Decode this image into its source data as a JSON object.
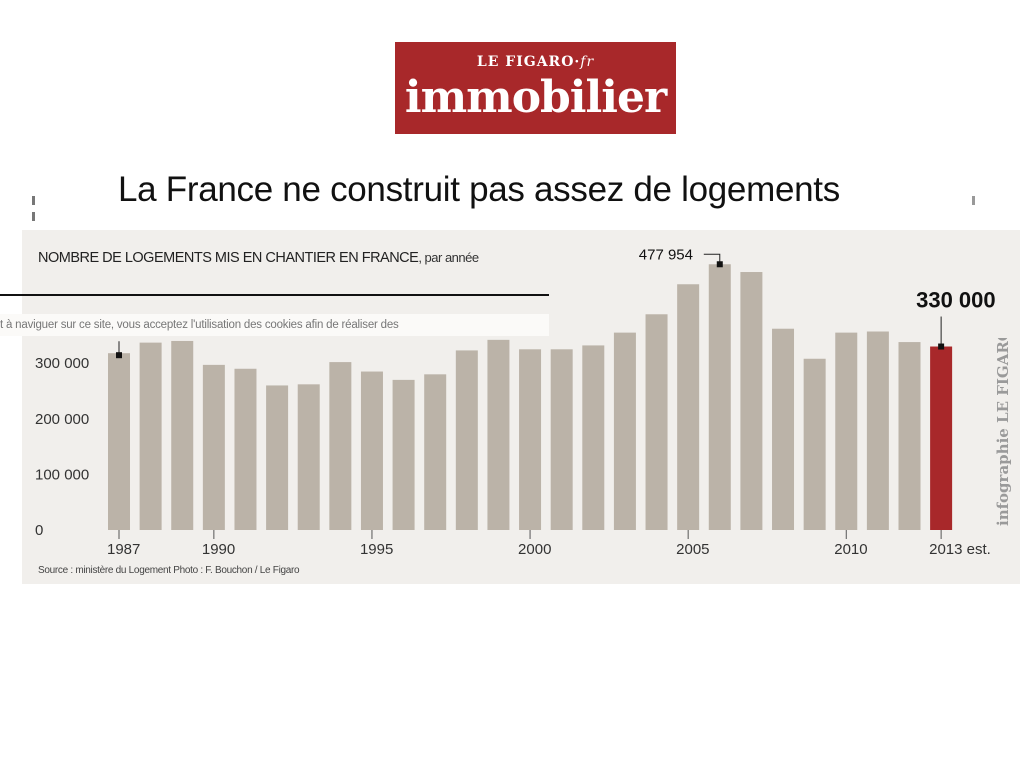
{
  "logo": {
    "brand": "LE FIGARO",
    "suffix": "fr",
    "product": "immobilier"
  },
  "headline": "La France ne construit pas assez de logements",
  "cookie_banner": "t à naviguer sur ce site, vous acceptez l'utilisation des cookies afin de réaliser des",
  "credit": "infographie LE FIGARO",
  "colors": {
    "bar": "#bbb3a8",
    "highlight": "#a8282a",
    "background": "#f1efec",
    "logo_bg": "#a8282a"
  },
  "chart_data": {
    "type": "bar",
    "title": "NOMBRE DE LOGEMENTS MIS EN CHANTIER EN FRANCE",
    "subtitle": ", par année",
    "x": [
      1987,
      1988,
      1989,
      1990,
      1991,
      1992,
      1993,
      1994,
      1995,
      1996,
      1997,
      1998,
      1999,
      2000,
      2001,
      2002,
      2003,
      2004,
      2005,
      2006,
      2007,
      2008,
      2009,
      2010,
      2011,
      2012,
      2013
    ],
    "values": [
      318000,
      337000,
      340000,
      297000,
      290000,
      260000,
      262000,
      302000,
      285000,
      270000,
      280000,
      323000,
      342000,
      325000,
      325000,
      332000,
      355000,
      388000,
      442000,
      477954,
      464000,
      362000,
      308000,
      355000,
      357000,
      338000,
      330000
    ],
    "highlight_index": 26,
    "ylim": [
      0,
      500000
    ],
    "yticks": [
      0,
      100000,
      200000,
      300000
    ],
    "ytick_labels": [
      "0",
      "100 000",
      "200 000",
      "300 000"
    ],
    "xtick_labels": [
      {
        "index": 0,
        "label": "1987"
      },
      {
        "index": 3,
        "label": "1990"
      },
      {
        "index": 8,
        "label": "1995"
      },
      {
        "index": 13,
        "label": "2000"
      },
      {
        "index": 18,
        "label": "2005"
      },
      {
        "index": 23,
        "label": "2010"
      },
      {
        "index": 26,
        "label": "2013 est."
      }
    ],
    "annotations": [
      {
        "index": 19,
        "text": "477 954"
      },
      {
        "index": 26,
        "text": "330 000"
      }
    ],
    "source": "Source : ministère du Logement   Photo : F. Bouchon / Le Figaro"
  }
}
